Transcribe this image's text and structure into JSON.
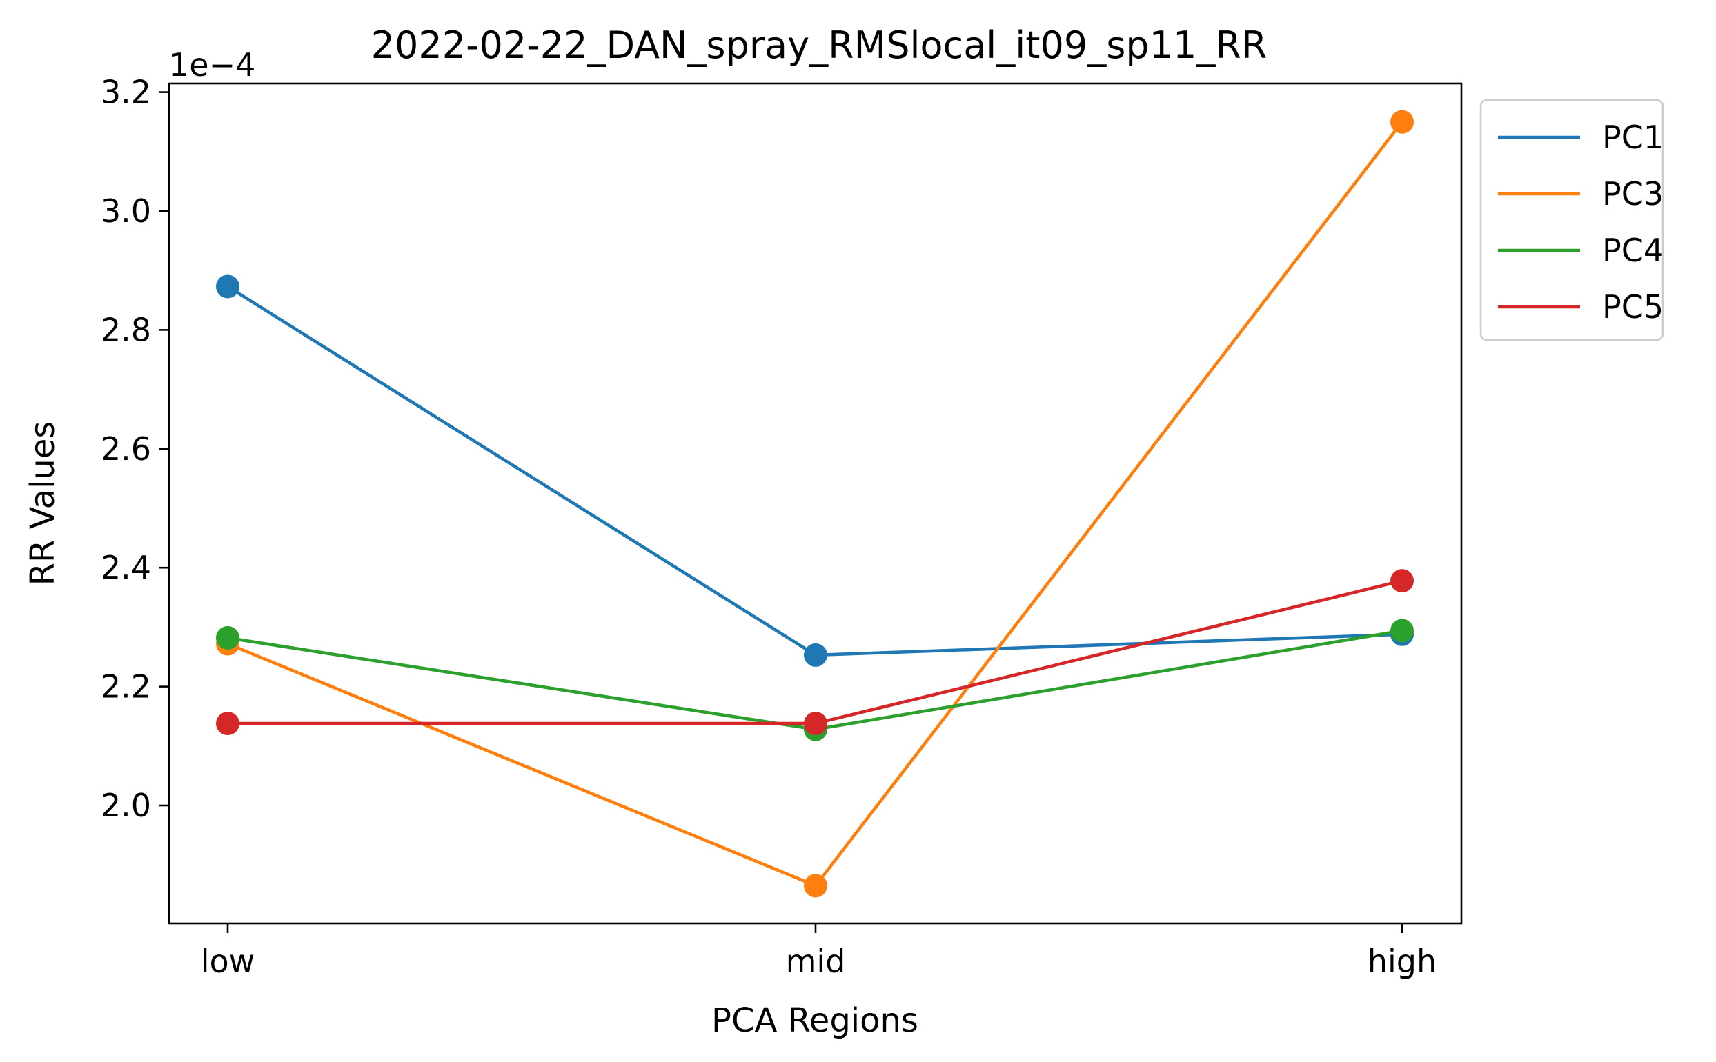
{
  "chart_data": {
    "type": "line",
    "title": "2022-02-22_DAN_spray_RMSlocal_it09_sp11_RR",
    "xlabel": "PCA Regions",
    "ylabel": "RR Values",
    "y_offset_label": "1e−4",
    "categories": [
      "low",
      "mid",
      "high"
    ],
    "ylim": [
      1.8,
      3.22
    ],
    "yticks": [
      2.0,
      2.2,
      2.4,
      2.6,
      2.8,
      3.0,
      3.2
    ],
    "ytick_labels": [
      "2.0",
      "2.2",
      "2.4",
      "2.6",
      "2.8",
      "3.0",
      "3.2"
    ],
    "grid": false,
    "legend_position": "outside-top-right",
    "series": [
      {
        "name": "PC1",
        "color": "#1f77b4",
        "values": [
          2.873,
          2.253,
          2.288
        ]
      },
      {
        "name": "PC3",
        "color": "#ff7f0e",
        "values": [
          2.272,
          1.865,
          3.15
        ]
      },
      {
        "name": "PC4",
        "color": "#2ca02c",
        "values": [
          2.282,
          2.128,
          2.294
        ]
      },
      {
        "name": "PC5",
        "color": "#d62728",
        "values": [
          2.138,
          2.138,
          2.378
        ]
      }
    ]
  }
}
